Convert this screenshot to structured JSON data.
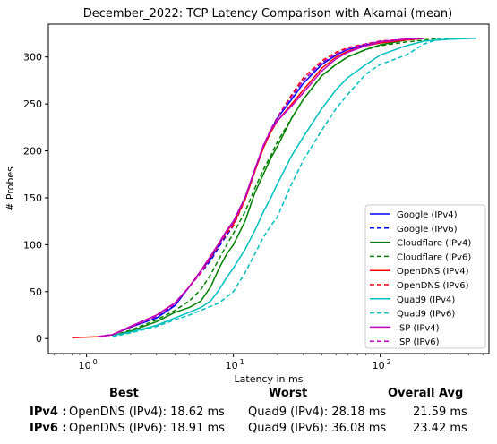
{
  "chart_data": {
    "type": "line",
    "title": "December_2022: TCP Latency Comparison with Akamai (mean)",
    "xlabel": "Latency in ms",
    "ylabel": "# Probes",
    "xscale": "log",
    "xlim": [
      0.55,
      550
    ],
    "ylim": [
      -16,
      335
    ],
    "xticks": [
      {
        "value": 1,
        "base": "10",
        "exp": "0"
      },
      {
        "value": 10,
        "base": "10",
        "exp": "1"
      },
      {
        "value": 100,
        "base": "10",
        "exp": "2"
      }
    ],
    "yticks": [
      0,
      50,
      100,
      150,
      200,
      250,
      300
    ],
    "grid": false,
    "legend_position": "lower-right",
    "series": [
      {
        "name": "Google (IPv4)",
        "color": "#0000ff",
        "dash": "solid",
        "points": [
          [
            1.2,
            2
          ],
          [
            1.5,
            4
          ],
          [
            2,
            12
          ],
          [
            3,
            22
          ],
          [
            4,
            35
          ],
          [
            5,
            55
          ],
          [
            6,
            72
          ],
          [
            7,
            85
          ],
          [
            8,
            100
          ],
          [
            9,
            115
          ],
          [
            10,
            125
          ],
          [
            12,
            150
          ],
          [
            14,
            180
          ],
          [
            16,
            205
          ],
          [
            18,
            222
          ],
          [
            20,
            235
          ],
          [
            25,
            255
          ],
          [
            30,
            272
          ],
          [
            40,
            292
          ],
          [
            50,
            302
          ],
          [
            60,
            308
          ],
          [
            80,
            313
          ],
          [
            100,
            316
          ],
          [
            150,
            319
          ],
          [
            200,
            320
          ]
        ]
      },
      {
        "name": "Google (IPv6)",
        "color": "#0000ff",
        "dash": "dashed",
        "points": [
          [
            1.2,
            2
          ],
          [
            1.5,
            4
          ],
          [
            2,
            12
          ],
          [
            3,
            23
          ],
          [
            4,
            36
          ],
          [
            5,
            55
          ],
          [
            6,
            70
          ],
          [
            7,
            83
          ],
          [
            8,
            98
          ],
          [
            9,
            110
          ],
          [
            10,
            120
          ],
          [
            12,
            148
          ],
          [
            14,
            178
          ],
          [
            16,
            205
          ],
          [
            18,
            222
          ],
          [
            20,
            236
          ],
          [
            25,
            258
          ],
          [
            30,
            275
          ],
          [
            40,
            294
          ],
          [
            50,
            303
          ],
          [
            60,
            308
          ],
          [
            80,
            313
          ],
          [
            100,
            316
          ],
          [
            150,
            319
          ],
          [
            200,
            320
          ]
        ]
      },
      {
        "name": "Cloudflare (IPv4)",
        "color": "#008000",
        "dash": "solid",
        "points": [
          [
            1.5,
            3
          ],
          [
            2,
            8
          ],
          [
            3,
            18
          ],
          [
            4,
            28
          ],
          [
            5,
            33
          ],
          [
            6,
            40
          ],
          [
            7,
            55
          ],
          [
            8,
            75
          ],
          [
            9,
            90
          ],
          [
            10,
            100
          ],
          [
            12,
            125
          ],
          [
            14,
            155
          ],
          [
            16,
            175
          ],
          [
            18,
            192
          ],
          [
            20,
            205
          ],
          [
            25,
            235
          ],
          [
            30,
            255
          ],
          [
            40,
            280
          ],
          [
            50,
            292
          ],
          [
            60,
            300
          ],
          [
            80,
            308
          ],
          [
            100,
            313
          ],
          [
            150,
            318
          ],
          [
            200,
            320
          ]
        ]
      },
      {
        "name": "Cloudflare (IPv6)",
        "color": "#008000",
        "dash": "dashed",
        "points": [
          [
            1.5,
            3
          ],
          [
            2,
            9
          ],
          [
            3,
            20
          ],
          [
            4,
            30
          ],
          [
            5,
            40
          ],
          [
            6,
            52
          ],
          [
            7,
            68
          ],
          [
            8,
            85
          ],
          [
            9,
            100
          ],
          [
            10,
            112
          ],
          [
            12,
            135
          ],
          [
            14,
            160
          ],
          [
            16,
            180
          ],
          [
            18,
            195
          ],
          [
            20,
            210
          ],
          [
            25,
            235
          ],
          [
            30,
            255
          ],
          [
            40,
            280
          ],
          [
            50,
            292
          ],
          [
            60,
            300
          ],
          [
            80,
            308
          ],
          [
            100,
            312
          ],
          [
            150,
            316
          ],
          [
            200,
            318
          ],
          [
            250,
            320
          ]
        ]
      },
      {
        "name": "OpenDNS (IPv4)",
        "color": "#ff0000",
        "dash": "solid",
        "points": [
          [
            0.8,
            1
          ],
          [
            1.2,
            2
          ],
          [
            1.5,
            4
          ],
          [
            2,
            13
          ],
          [
            3,
            25
          ],
          [
            4,
            38
          ],
          [
            5,
            55
          ],
          [
            6,
            72
          ],
          [
            7,
            88
          ],
          [
            8,
            102
          ],
          [
            9,
            115
          ],
          [
            10,
            122
          ],
          [
            12,
            148
          ],
          [
            14,
            178
          ],
          [
            16,
            203
          ],
          [
            18,
            220
          ],
          [
            20,
            232
          ],
          [
            25,
            250
          ],
          [
            30,
            265
          ],
          [
            40,
            288
          ],
          [
            50,
            300
          ],
          [
            60,
            306
          ],
          [
            80,
            312
          ],
          [
            100,
            315
          ],
          [
            150,
            318
          ],
          [
            200,
            320
          ]
        ]
      },
      {
        "name": "OpenDNS (IPv6)",
        "color": "#ff0000",
        "dash": "dashed",
        "points": [
          [
            1.2,
            2
          ],
          [
            1.5,
            4
          ],
          [
            2,
            12
          ],
          [
            3,
            24
          ],
          [
            4,
            37
          ],
          [
            5,
            55
          ],
          [
            6,
            70
          ],
          [
            7,
            86
          ],
          [
            8,
            100
          ],
          [
            9,
            112
          ],
          [
            10,
            120
          ],
          [
            12,
            148
          ],
          [
            14,
            178
          ],
          [
            16,
            205
          ],
          [
            18,
            222
          ],
          [
            20,
            236
          ],
          [
            25,
            260
          ],
          [
            30,
            278
          ],
          [
            40,
            296
          ],
          [
            50,
            305
          ],
          [
            60,
            310
          ],
          [
            80,
            314
          ],
          [
            100,
            317
          ],
          [
            150,
            319
          ],
          [
            200,
            320
          ]
        ]
      },
      {
        "name": "Quad9 (IPv4)",
        "color": "#00bfbf",
        "dash": "solid",
        "points": [
          [
            1.5,
            3
          ],
          [
            2,
            7
          ],
          [
            3,
            14
          ],
          [
            4,
            22
          ],
          [
            5,
            28
          ],
          [
            6,
            33
          ],
          [
            7,
            40
          ],
          [
            8,
            52
          ],
          [
            9,
            65
          ],
          [
            10,
            75
          ],
          [
            12,
            95
          ],
          [
            14,
            115
          ],
          [
            16,
            135
          ],
          [
            18,
            150
          ],
          [
            20,
            165
          ],
          [
            25,
            195
          ],
          [
            30,
            215
          ],
          [
            40,
            245
          ],
          [
            50,
            265
          ],
          [
            60,
            278
          ],
          [
            80,
            292
          ],
          [
            100,
            302
          ],
          [
            150,
            312
          ],
          [
            200,
            317
          ],
          [
            300,
            319
          ],
          [
            450,
            320
          ]
        ]
      },
      {
        "name": "Quad9 (IPv6)",
        "color": "#00bfbf",
        "dash": "dashed",
        "points": [
          [
            1.5,
            2
          ],
          [
            2,
            6
          ],
          [
            3,
            13
          ],
          [
            4,
            20
          ],
          [
            5,
            25
          ],
          [
            6,
            30
          ],
          [
            8,
            38
          ],
          [
            10,
            50
          ],
          [
            12,
            70
          ],
          [
            14,
            90
          ],
          [
            16,
            108
          ],
          [
            18,
            120
          ],
          [
            20,
            130
          ],
          [
            25,
            165
          ],
          [
            30,
            190
          ],
          [
            40,
            222
          ],
          [
            50,
            245
          ],
          [
            60,
            260
          ],
          [
            80,
            282
          ],
          [
            100,
            292
          ],
          [
            150,
            302
          ],
          [
            200,
            314
          ],
          [
            250,
            319
          ],
          [
            300,
            320
          ]
        ]
      },
      {
        "name": "ISP (IPv4)",
        "color": "#bf00bf",
        "dash": "solid",
        "points": [
          [
            1.2,
            2
          ],
          [
            1.5,
            4
          ],
          [
            2,
            13
          ],
          [
            3,
            25
          ],
          [
            4,
            38
          ],
          [
            5,
            55
          ],
          [
            6,
            72
          ],
          [
            7,
            88
          ],
          [
            8,
            102
          ],
          [
            9,
            115
          ],
          [
            10,
            125
          ],
          [
            12,
            150
          ],
          [
            14,
            180
          ],
          [
            16,
            205
          ],
          [
            18,
            222
          ],
          [
            20,
            232
          ],
          [
            25,
            248
          ],
          [
            30,
            262
          ],
          [
            40,
            285
          ],
          [
            50,
            298
          ],
          [
            60,
            305
          ],
          [
            80,
            312
          ],
          [
            100,
            316
          ],
          [
            150,
            319
          ],
          [
            200,
            320
          ]
        ]
      },
      {
        "name": "ISP (IPv6)",
        "color": "#bf00bf",
        "dash": "dashed",
        "points": [
          [
            1.2,
            2
          ],
          [
            1.5,
            4
          ],
          [
            2,
            12
          ],
          [
            3,
            24
          ],
          [
            4,
            37
          ],
          [
            5,
            55
          ],
          [
            6,
            71
          ],
          [
            7,
            87
          ],
          [
            8,
            101
          ],
          [
            9,
            114
          ],
          [
            10,
            123
          ],
          [
            12,
            150
          ],
          [
            14,
            180
          ],
          [
            16,
            206
          ],
          [
            18,
            223
          ],
          [
            20,
            236
          ],
          [
            25,
            258
          ],
          [
            30,
            275
          ],
          [
            40,
            294
          ],
          [
            50,
            303
          ],
          [
            60,
            309
          ],
          [
            80,
            314
          ],
          [
            100,
            317
          ],
          [
            150,
            319
          ],
          [
            200,
            320
          ]
        ]
      }
    ]
  },
  "summary": {
    "headers": {
      "best": "Best",
      "worst": "Worst",
      "avg": "Overall Avg"
    },
    "rows": [
      {
        "label": "IPv4 :",
        "best": "OpenDNS (IPv4): 18.62 ms",
        "worst": "Quad9 (IPv4): 28.18 ms",
        "avg": "21.59 ms"
      },
      {
        "label": "IPv6 :",
        "best": "OpenDNS (IPv6): 18.91 ms",
        "worst": "Quad9 (IPv6): 36.08 ms",
        "avg": "23.42 ms"
      }
    ]
  }
}
